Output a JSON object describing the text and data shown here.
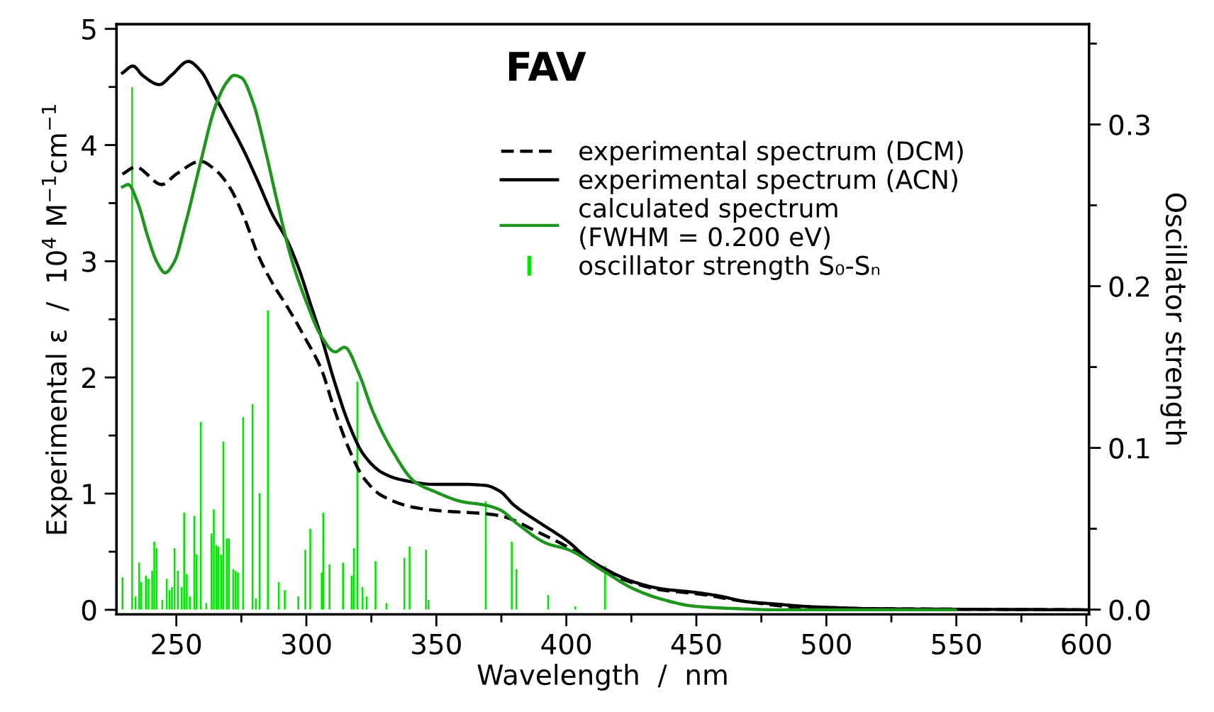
{
  "chart_data": {
    "type": "line",
    "title": "FAV",
    "xlabel": "Wavelength  /  nm",
    "ylabel": "Experimental ε  /  10$^{4}$ M$^{−1}$cm$^{−1}$",
    "y2label": "Oscillator strength",
    "xlim": [
      227,
      601
    ],
    "ylim": [
      -0.04,
      5.04
    ],
    "y2lim": [
      -0.003,
      0.362
    ],
    "xticks": [
      250,
      {
        "value": 275,
        "label": null
      },
      300,
      {
        "value": 325,
        "label": null
      },
      350,
      {
        "value": 375,
        "label": null
      },
      400,
      {
        "value": 425,
        "label": null
      },
      450,
      {
        "value": 475,
        "label": null
      },
      500,
      {
        "value": 525,
        "label": null
      },
      550,
      {
        "value": 575,
        "label": null
      },
      600
    ],
    "yticks": [
      0,
      {
        "value": 0.5,
        "label": null
      },
      1,
      {
        "value": 1.5,
        "label": null
      },
      2,
      {
        "value": 2.5,
        "label": null
      },
      3,
      {
        "value": 3.5,
        "label": null
      },
      4,
      {
        "value": 4.5,
        "label": null
      },
      5
    ],
    "y2ticks": [
      {
        "value": 0,
        "label": "0.0"
      },
      {
        "value": 0.05,
        "label": null
      },
      {
        "value": 0.1,
        "label": "0.1"
      },
      {
        "value": 0.15,
        "label": null
      },
      {
        "value": 0.2,
        "label": "0.2"
      },
      {
        "value": 0.25,
        "label": null
      },
      {
        "value": 0.3,
        "label": "0.3"
      },
      {
        "value": 0.35,
        "label": null
      }
    ],
    "grid": false,
    "legend": "top right",
    "series": [
      {
        "name": "experimental spectrum (DCM)",
        "line_style": "dashed",
        "color": "#000000",
        "x": [
          229.3,
          234.3,
          244.4,
          250,
          259.3,
          264.8,
          270.4,
          276,
          281.5,
          287,
          292.6,
          300,
          305.6,
          311,
          316.5,
          321.9,
          329.2,
          341.8,
          352.7,
          367.2,
          374.5,
          379.9,
          387.1,
          400.5,
          415,
          425.9,
          436.8,
          449.5,
          469.4,
          491.1,
          516.5,
          600
        ],
        "values": [
          3.75,
          3.81,
          3.66,
          3.75,
          3.86,
          3.79,
          3.64,
          3.38,
          3.05,
          2.81,
          2.61,
          2.32,
          2.08,
          1.71,
          1.38,
          1.14,
          0.98,
          0.88,
          0.85,
          0.83,
          0.81,
          0.77,
          0.69,
          0.54,
          0.33,
          0.23,
          0.17,
          0.14,
          0.07,
          0.02,
          0.01,
          0
        ]
      },
      {
        "name": "experimental spectrum (ACN)",
        "line_style": "solid",
        "color": "#000000",
        "x": [
          229.3,
          233.3,
          237,
          243.5,
          248.1,
          254.6,
          259.3,
          264.8,
          270.4,
          276,
          281.5,
          287,
          292.6,
          297.2,
          301.9,
          305.6,
          311,
          316.5,
          321.9,
          329.2,
          336.4,
          349.1,
          360,
          369,
          374.5,
          379.9,
          389.7,
          400.5,
          407.8,
          415,
          425.9,
          436.8,
          449.5,
          458.5,
          469.4,
          480.3,
          491.1,
          502,
          516.5,
          600
        ],
        "values": [
          4.62,
          4.68,
          4.6,
          4.52,
          4.6,
          4.72,
          4.64,
          4.42,
          4.19,
          3.95,
          3.68,
          3.4,
          3.18,
          2.93,
          2.61,
          2.36,
          1.95,
          1.59,
          1.34,
          1.18,
          1.12,
          1.08,
          1.08,
          1.07,
          1.02,
          0.9,
          0.75,
          0.59,
          0.45,
          0.35,
          0.24,
          0.18,
          0.15,
          0.12,
          0.07,
          0.05,
          0.03,
          0.02,
          0.01,
          0
        ]
      },
      {
        "name": "calculated spectrum\n(FWHM = 0.200 eV)",
        "line_style": "solid",
        "color": "#1e961e",
        "x": [
          229.3,
          231.5,
          235.2,
          238.9,
          242.6,
          245.7,
          249.1,
          253.7,
          259.3,
          264.8,
          269.4,
          272.2,
          275,
          279.6,
          284.3,
          288.9,
          294.4,
          300,
          305.6,
          311.1,
          314.7,
          320.1,
          325.5,
          332.8,
          341.8,
          349.1,
          360,
          369,
          374.5,
          381.7,
          392.6,
          400.5,
          414.5,
          425.9,
          436.8,
          449.5,
          465.8,
          480.3,
          549.6
        ],
        "values": [
          3.64,
          3.66,
          3.5,
          3.22,
          2.99,
          2.9,
          2.99,
          3.34,
          3.85,
          4.32,
          4.54,
          4.6,
          4.58,
          4.36,
          3.95,
          3.5,
          3.01,
          2.65,
          2.36,
          2.22,
          2.26,
          2.04,
          1.71,
          1.38,
          1.1,
          1.02,
          0.93,
          0.9,
          0.86,
          0.73,
          0.57,
          0.52,
          0.33,
          0.18,
          0.09,
          0.03,
          0.01,
          0,
          0
        ]
      },
      {
        "name": "oscillator strength S₀-Sₙ",
        "type": "bar",
        "axis": "y2",
        "color": "#00e600",
        "x": [
          229.3,
          233.0,
          234.3,
          235.7,
          236.5,
          238.3,
          239.3,
          240.7,
          241.5,
          242.4,
          244.6,
          246.3,
          247.4,
          248.3,
          249.3,
          250.6,
          252.0,
          253.0,
          254.0,
          255.2,
          256.9,
          257.8,
          259.4,
          261.5,
          263.5,
          264.4,
          265.4,
          266.1,
          267.2,
          268.1,
          269.4,
          270.2,
          271.9,
          272.8,
          273.7,
          275.7,
          279.3,
          280.6,
          282.0,
          285.2,
          289.4,
          291.7,
          296.9,
          299.6,
          301.5,
          305.9,
          306.5,
          308.9,
          314.1,
          317.4,
          318.3,
          319.6,
          321.6,
          323.2,
          326.6,
          330.8,
          337.7,
          339.7,
          346.0,
          347.0,
          369.0,
          379.0,
          380.8,
          393.0,
          403.4,
          414.9
        ],
        "values": [
          0.02,
          0.323,
          0.008,
          0.029,
          0.017,
          0.021,
          0.019,
          0.024,
          0.042,
          0.038,
          0.006,
          0.019,
          0.012,
          0.014,
          0.038,
          0.024,
          0.014,
          0.06,
          0.022,
          0.008,
          0.058,
          0.034,
          0.116,
          0.004,
          0.047,
          0.062,
          0.04,
          0.039,
          0.034,
          0.104,
          0.044,
          0.044,
          0.025,
          0.024,
          0.023,
          0.119,
          0.127,
          0.007,
          0.072,
          0.185,
          0.017,
          0.012,
          0.008,
          0.037,
          0.05,
          0.023,
          0.06,
          0.028,
          0.029,
          0.021,
          0.038,
          0.141,
          0.014,
          0.008,
          0.03,
          0.004,
          0.032,
          0.039,
          0.037,
          0.006,
          0.067,
          0.042,
          0.025,
          0.009,
          0.002,
          0.027
        ]
      }
    ]
  }
}
